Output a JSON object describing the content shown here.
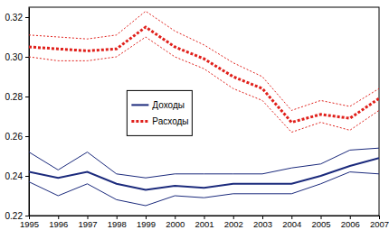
{
  "chart_data": {
    "type": "line",
    "x": [
      1995,
      1996,
      1997,
      1998,
      1999,
      2000,
      2001,
      2002,
      2003,
      2004,
      2005,
      2006,
      2007
    ],
    "xlim": [
      1995,
      2007
    ],
    "xticks": [
      1995,
      1996,
      1997,
      1998,
      1999,
      2000,
      2001,
      2002,
      2003,
      2004,
      2005,
      2006,
      2007
    ],
    "ylim": [
      0.22,
      0.325
    ],
    "yticks": [
      0.22,
      0.24,
      0.26,
      0.28,
      {
        "value": 0.3,
        "label": "0.30"
      },
      0.32
    ],
    "legend": "center",
    "series": [
      {
        "name": "Доходы",
        "color": "#1b2a7c",
        "line_style": "solid",
        "values": [
          0.242,
          0.239,
          0.242,
          0.236,
          0.233,
          0.235,
          0.234,
          0.236,
          0.236,
          0.236,
          0.24,
          0.245,
          0.249
        ],
        "lower": [
          0.237,
          0.23,
          0.236,
          0.228,
          0.225,
          0.23,
          0.229,
          0.231,
          0.231,
          0.231,
          0.236,
          0.242,
          0.241
        ],
        "upper": [
          0.252,
          0.243,
          0.252,
          0.241,
          0.239,
          0.241,
          0.241,
          0.241,
          0.241,
          0.244,
          0.246,
          0.253,
          0.254
        ]
      },
      {
        "name": "Расходы",
        "color": "#e0201b",
        "line_style": "dotted",
        "values": [
          0.305,
          0.304,
          0.303,
          0.304,
          0.315,
          0.305,
          0.299,
          0.29,
          0.284,
          0.267,
          0.271,
          0.269,
          0.279
        ],
        "lower": [
          0.3,
          0.298,
          0.298,
          0.3,
          0.31,
          0.3,
          0.294,
          0.284,
          0.278,
          0.262,
          0.267,
          0.263,
          0.273
        ],
        "upper": [
          0.311,
          0.31,
          0.309,
          0.311,
          0.323,
          0.313,
          0.306,
          0.297,
          0.29,
          0.273,
          0.278,
          0.275,
          0.284
        ]
      }
    ]
  }
}
